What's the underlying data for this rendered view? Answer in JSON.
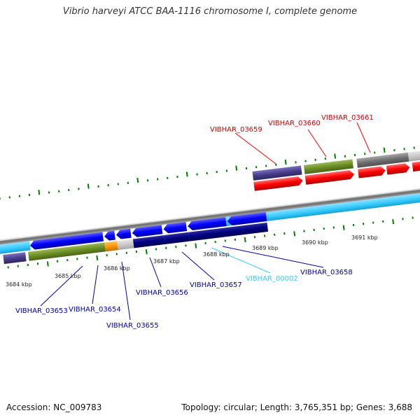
{
  "title": "Vibrio harveyi ATCC BAA-1116 chromosome I, complete genome",
  "footer": {
    "accession": "Accession: NC_009783",
    "summary": "Topology: circular; Length: 3,765,351 bp; Genes: 3,688"
  },
  "colors": {
    "forward_gene": "#ff0000",
    "reverse_gene": "#0000ff",
    "reverse_gene_dark": "#000080",
    "rna_gene": "#33ccff",
    "cog_green": "#6b8e23",
    "cog_slate": "#483d8b",
    "cog_gray": "#808080",
    "cog_light_gray": "#cccccc",
    "cog_orange": "#ff9900",
    "tick": "#008000",
    "backbone": "#808080",
    "label_forward": "#cc0000",
    "label_reverse": "#0000aa",
    "label_rna": "#33ccff"
  },
  "scale_labels": [
    "3684 kbp",
    "3685 kbp",
    "3686 kbp",
    "3687 kbp",
    "3688 kbp",
    "3689 kbp",
    "3690 kbp",
    "3691 kbp"
  ],
  "gene_labels": {
    "VIBHAR_03659": "VIBHAR_03659",
    "VIBHAR_03660": "VIBHAR_03660",
    "VIBHAR_03661": "VIBHAR_03661",
    "VIBHAR_03653": "VIBHAR_03653",
    "VIBHAR_03654": "VIBHAR_03654",
    "VIBHAR_03655": "VIBHAR_03655",
    "VIBHAR_03656": "VIBHAR_03656",
    "VIBHAR_03657": "VIBHAR_03657",
    "VIBHAR_00002": "VIBHAR_00002",
    "VIBHAR_03658": "VIBHAR_03658"
  }
}
